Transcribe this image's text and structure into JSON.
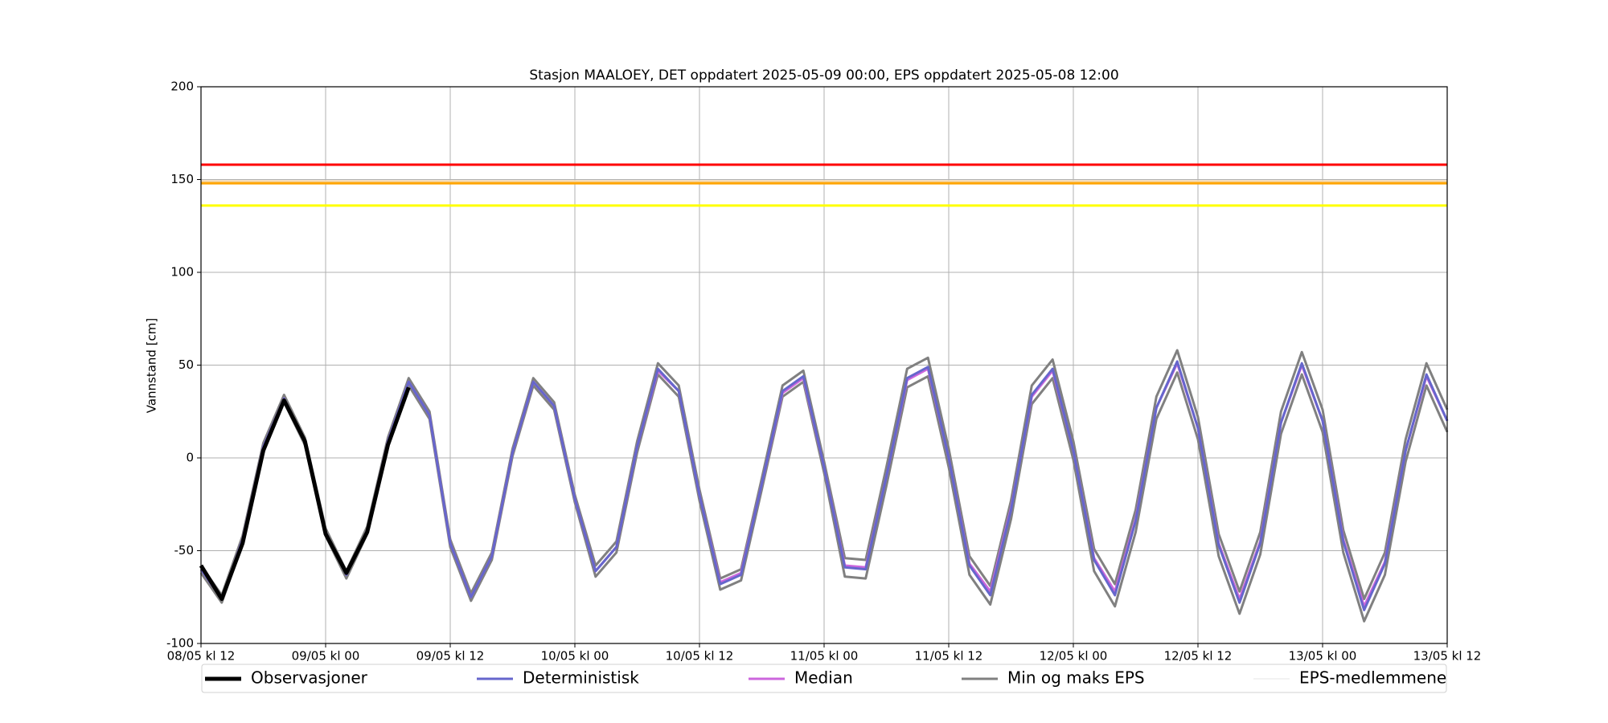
{
  "chart_data": {
    "type": "line",
    "title": "Stasjon MAALOEY, DET oppdatert 2025-05-09 00:00, EPS oppdatert 2025-05-08 12:00",
    "ylabel": "Vannstand [cm]",
    "x": [
      "08/05 kl 12",
      "08/05 kl 14",
      "08/05 kl 16",
      "08/05 kl 18",
      "08/05 kl 20",
      "08/05 kl 22",
      "09/05 kl 00",
      "09/05 kl 02",
      "09/05 kl 04",
      "09/05 kl 06",
      "09/05 kl 08",
      "09/05 kl 10",
      "09/05 kl 12",
      "09/05 kl 14",
      "09/05 kl 16",
      "09/05 kl 18",
      "09/05 kl 20",
      "09/05 kl 22",
      "10/05 kl 00",
      "10/05 kl 02",
      "10/05 kl 04",
      "10/05 kl 06",
      "10/05 kl 08",
      "10/05 kl 10",
      "10/05 kl 12",
      "10/05 kl 14",
      "10/05 kl 16",
      "10/05 kl 18",
      "10/05 kl 20",
      "10/05 kl 22",
      "11/05 kl 00",
      "11/05 kl 02",
      "11/05 kl 04",
      "11/05 kl 06",
      "11/05 kl 08",
      "11/05 kl 10",
      "11/05 kl 12",
      "11/05 kl 14",
      "11/05 kl 16",
      "11/05 kl 18",
      "11/05 kl 20",
      "11/05 kl 22",
      "12/05 kl 00",
      "12/05 kl 02",
      "12/05 kl 04",
      "12/05 kl 06",
      "12/05 kl 08",
      "12/05 kl 10",
      "12/05 kl 12",
      "12/05 kl 14",
      "12/05 kl 16",
      "12/05 kl 18",
      "12/05 kl 20",
      "12/05 kl 22",
      "13/05 kl 00",
      "13/05 kl 02",
      "13/05 kl 04",
      "13/05 kl 06",
      "13/05 kl 08",
      "13/05 kl 10",
      "13/05 kl 12"
    ],
    "xticks": [
      "08/05 kl 12",
      "09/05 kl 00",
      "09/05 kl 12",
      "10/05 kl 00",
      "10/05 kl 12",
      "11/05 kl 00",
      "11/05 kl 12",
      "12/05 kl 00",
      "12/05 kl 12",
      "13/05 kl 00",
      "13/05 kl 12"
    ],
    "ylim": [
      -100,
      200
    ],
    "yticks": [
      -100,
      -50,
      0,
      50,
      100,
      150,
      200
    ],
    "grid": true,
    "thresholds": [
      {
        "value": 158,
        "color": "#ff0000"
      },
      {
        "value": 149,
        "color": "#f2d9b3"
      },
      {
        "value": 148,
        "color": "#ffa500"
      },
      {
        "value": 136,
        "color": "#ffff00"
      }
    ],
    "series": [
      {
        "name": "Observasjoner",
        "color": "#000000",
        "values": [
          -58,
          -76,
          -46,
          4,
          31,
          9,
          -41,
          -62,
          -40,
          7,
          38,
          null,
          null,
          null,
          null,
          null,
          null,
          null,
          null,
          null,
          null,
          null,
          null,
          null,
          null,
          null,
          null,
          null,
          null,
          null,
          null,
          null,
          null,
          null,
          null,
          null,
          null,
          null,
          null,
          null,
          null,
          null,
          null,
          null,
          null,
          null,
          null,
          null,
          null,
          null,
          null,
          null,
          null,
          null,
          null,
          null,
          null,
          null,
          null,
          null,
          null
        ]
      },
      {
        "name": "Deterministisk",
        "color": "#6666cc",
        "values": [
          -60,
          -76,
          -44,
          6,
          32,
          9,
          -40,
          -63,
          -39,
          9,
          41,
          23,
          -46,
          -75,
          -53,
          3,
          41,
          28,
          -22,
          -61,
          -48,
          6,
          48,
          36,
          -20,
          -68,
          -63,
          -14,
          36,
          44,
          -5,
          -59,
          -60,
          -10,
          43,
          49,
          0,
          -58,
          -74,
          -28,
          34,
          48,
          4,
          -55,
          -74,
          -34,
          27,
          52,
          16,
          -47,
          -78,
          -46,
          19,
          51,
          20,
          -45,
          -82,
          -57,
          4,
          45,
          20
        ]
      },
      {
        "name": "Median",
        "color": "#cc66dd",
        "values": [
          -60,
          -76,
          -44,
          6,
          32,
          9,
          -40,
          -63,
          -39,
          9,
          41,
          23,
          -46,
          -75,
          -53,
          3,
          41,
          28,
          -22,
          -61,
          -48,
          6,
          47,
          36,
          -20,
          -67,
          -62,
          -14,
          35,
          43,
          -5,
          -58,
          -59,
          -10,
          42,
          48,
          0,
          -57,
          -72,
          -27,
          33,
          47,
          4,
          -54,
          -72,
          -33,
          27,
          51,
          16,
          -46,
          -76,
          -45,
          19,
          50,
          20,
          -44,
          -80,
          -56,
          4,
          44,
          20
        ]
      },
      {
        "name": "Min og maks EPS",
        "color": "#808080",
        "min": [
          -62,
          -78,
          -46,
          4,
          30,
          7,
          -42,
          -65,
          -41,
          7,
          39,
          21,
          -48,
          -77,
          -55,
          1,
          39,
          26,
          -24,
          -64,
          -51,
          3,
          45,
          33,
          -23,
          -71,
          -66,
          -17,
          33,
          41,
          -8,
          -64,
          -65,
          -15,
          38,
          44,
          -5,
          -63,
          -79,
          -33,
          29,
          43,
          -1,
          -61,
          -80,
          -40,
          21,
          46,
          10,
          -53,
          -84,
          -52,
          13,
          45,
          14,
          -51,
          -88,
          -63,
          -2,
          39,
          14
        ],
        "max": [
          -58,
          -74,
          -42,
          8,
          34,
          11,
          -38,
          -61,
          -37,
          11,
          43,
          25,
          -44,
          -73,
          -51,
          5,
          43,
          30,
          -20,
          -58,
          -45,
          9,
          51,
          39,
          -17,
          -65,
          -60,
          -11,
          39,
          47,
          -2,
          -54,
          -55,
          -5,
          48,
          54,
          5,
          -53,
          -69,
          -23,
          39,
          53,
          9,
          -49,
          -68,
          -28,
          33,
          58,
          22,
          -41,
          -72,
          -40,
          25,
          57,
          26,
          -39,
          -76,
          -51,
          10,
          51,
          26
        ]
      },
      {
        "name": "EPS-medlemmene",
        "color": "#e6e6e6"
      }
    ]
  }
}
